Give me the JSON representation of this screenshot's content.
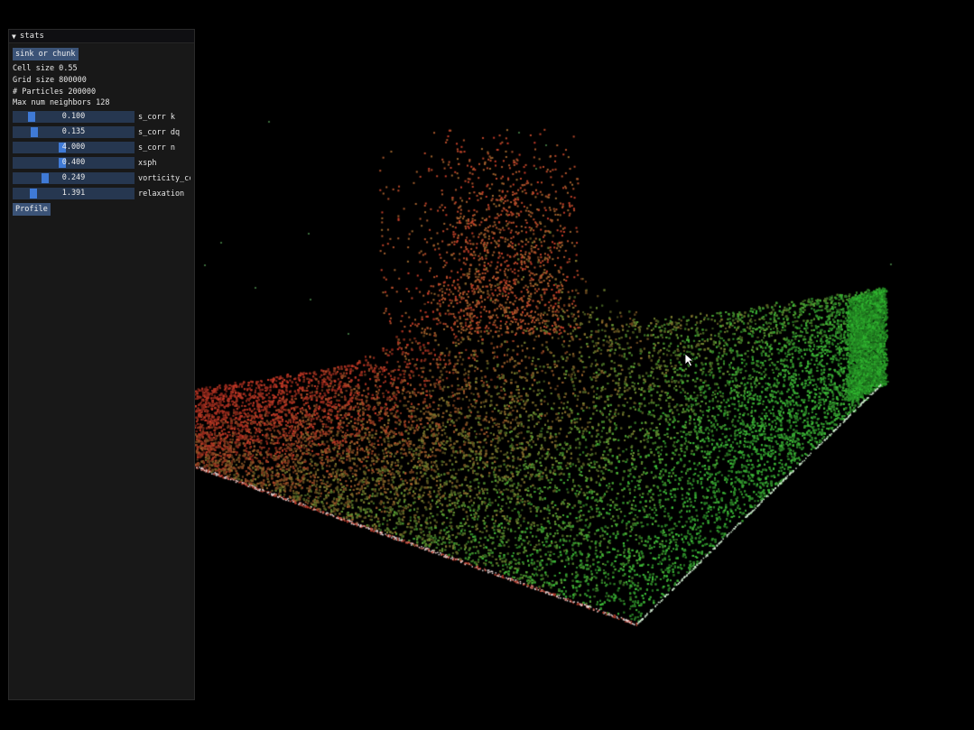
{
  "window": {
    "title": "stats",
    "collapse_icon": "triangle-down-icon"
  },
  "stats": {
    "mode_button": "sink or chunk",
    "cell_size": "Cell size 0.55",
    "grid_size": "Grid size 800000",
    "particles": "# Particles 200000",
    "max_neighbors": "Max num neighbors 128",
    "profile_button": "Profile"
  },
  "sliders": [
    {
      "name": "s_corr k",
      "value": "0.100",
      "level": 0.125
    },
    {
      "name": "s_corr dq",
      "value": "0.135",
      "level": 0.15
    },
    {
      "name": "s_corr n",
      "value": "4.000",
      "level": 0.4
    },
    {
      "name": "xsph",
      "value": "0.400",
      "level": 0.4
    },
    {
      "name": "vorticity_cc",
      "value": "0.249",
      "level": 0.25
    },
    {
      "name": "relaxation",
      "value": "1.391",
      "level": 0.14
    }
  ],
  "colors": {
    "background": "#000000",
    "panel": "#181818",
    "button": "#3b5377",
    "slider_frame": "#263750",
    "slider_grab": "#3f7ad6",
    "particle_red": "#c83a28",
    "particle_green": "#3fbf3a"
  },
  "viewport": {
    "icon": "mouse-pointer-icon"
  }
}
